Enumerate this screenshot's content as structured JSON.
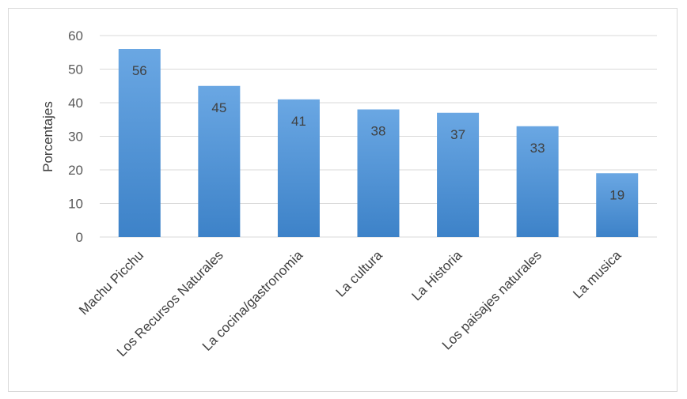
{
  "chart_data": {
    "type": "bar",
    "title": "",
    "xlabel": "",
    "ylabel": "Porcentajes",
    "ylim": [
      0,
      60
    ],
    "yticks": [
      0,
      10,
      20,
      30,
      40,
      50,
      60
    ],
    "grid": true,
    "legend": "none",
    "categories": [
      "Machu Picchu",
      "Los Recursos Naturales",
      "La cocina/gastronomia",
      "La cultura",
      "La Historia",
      "Los paisajes naturales",
      "La musica"
    ],
    "values": [
      56,
      45,
      41,
      38,
      37,
      33,
      19
    ],
    "colors": {
      "bar_top": "#6aa7e3",
      "bar_bottom": "#3d82c8",
      "grid": "#d9d9d9"
    }
  }
}
